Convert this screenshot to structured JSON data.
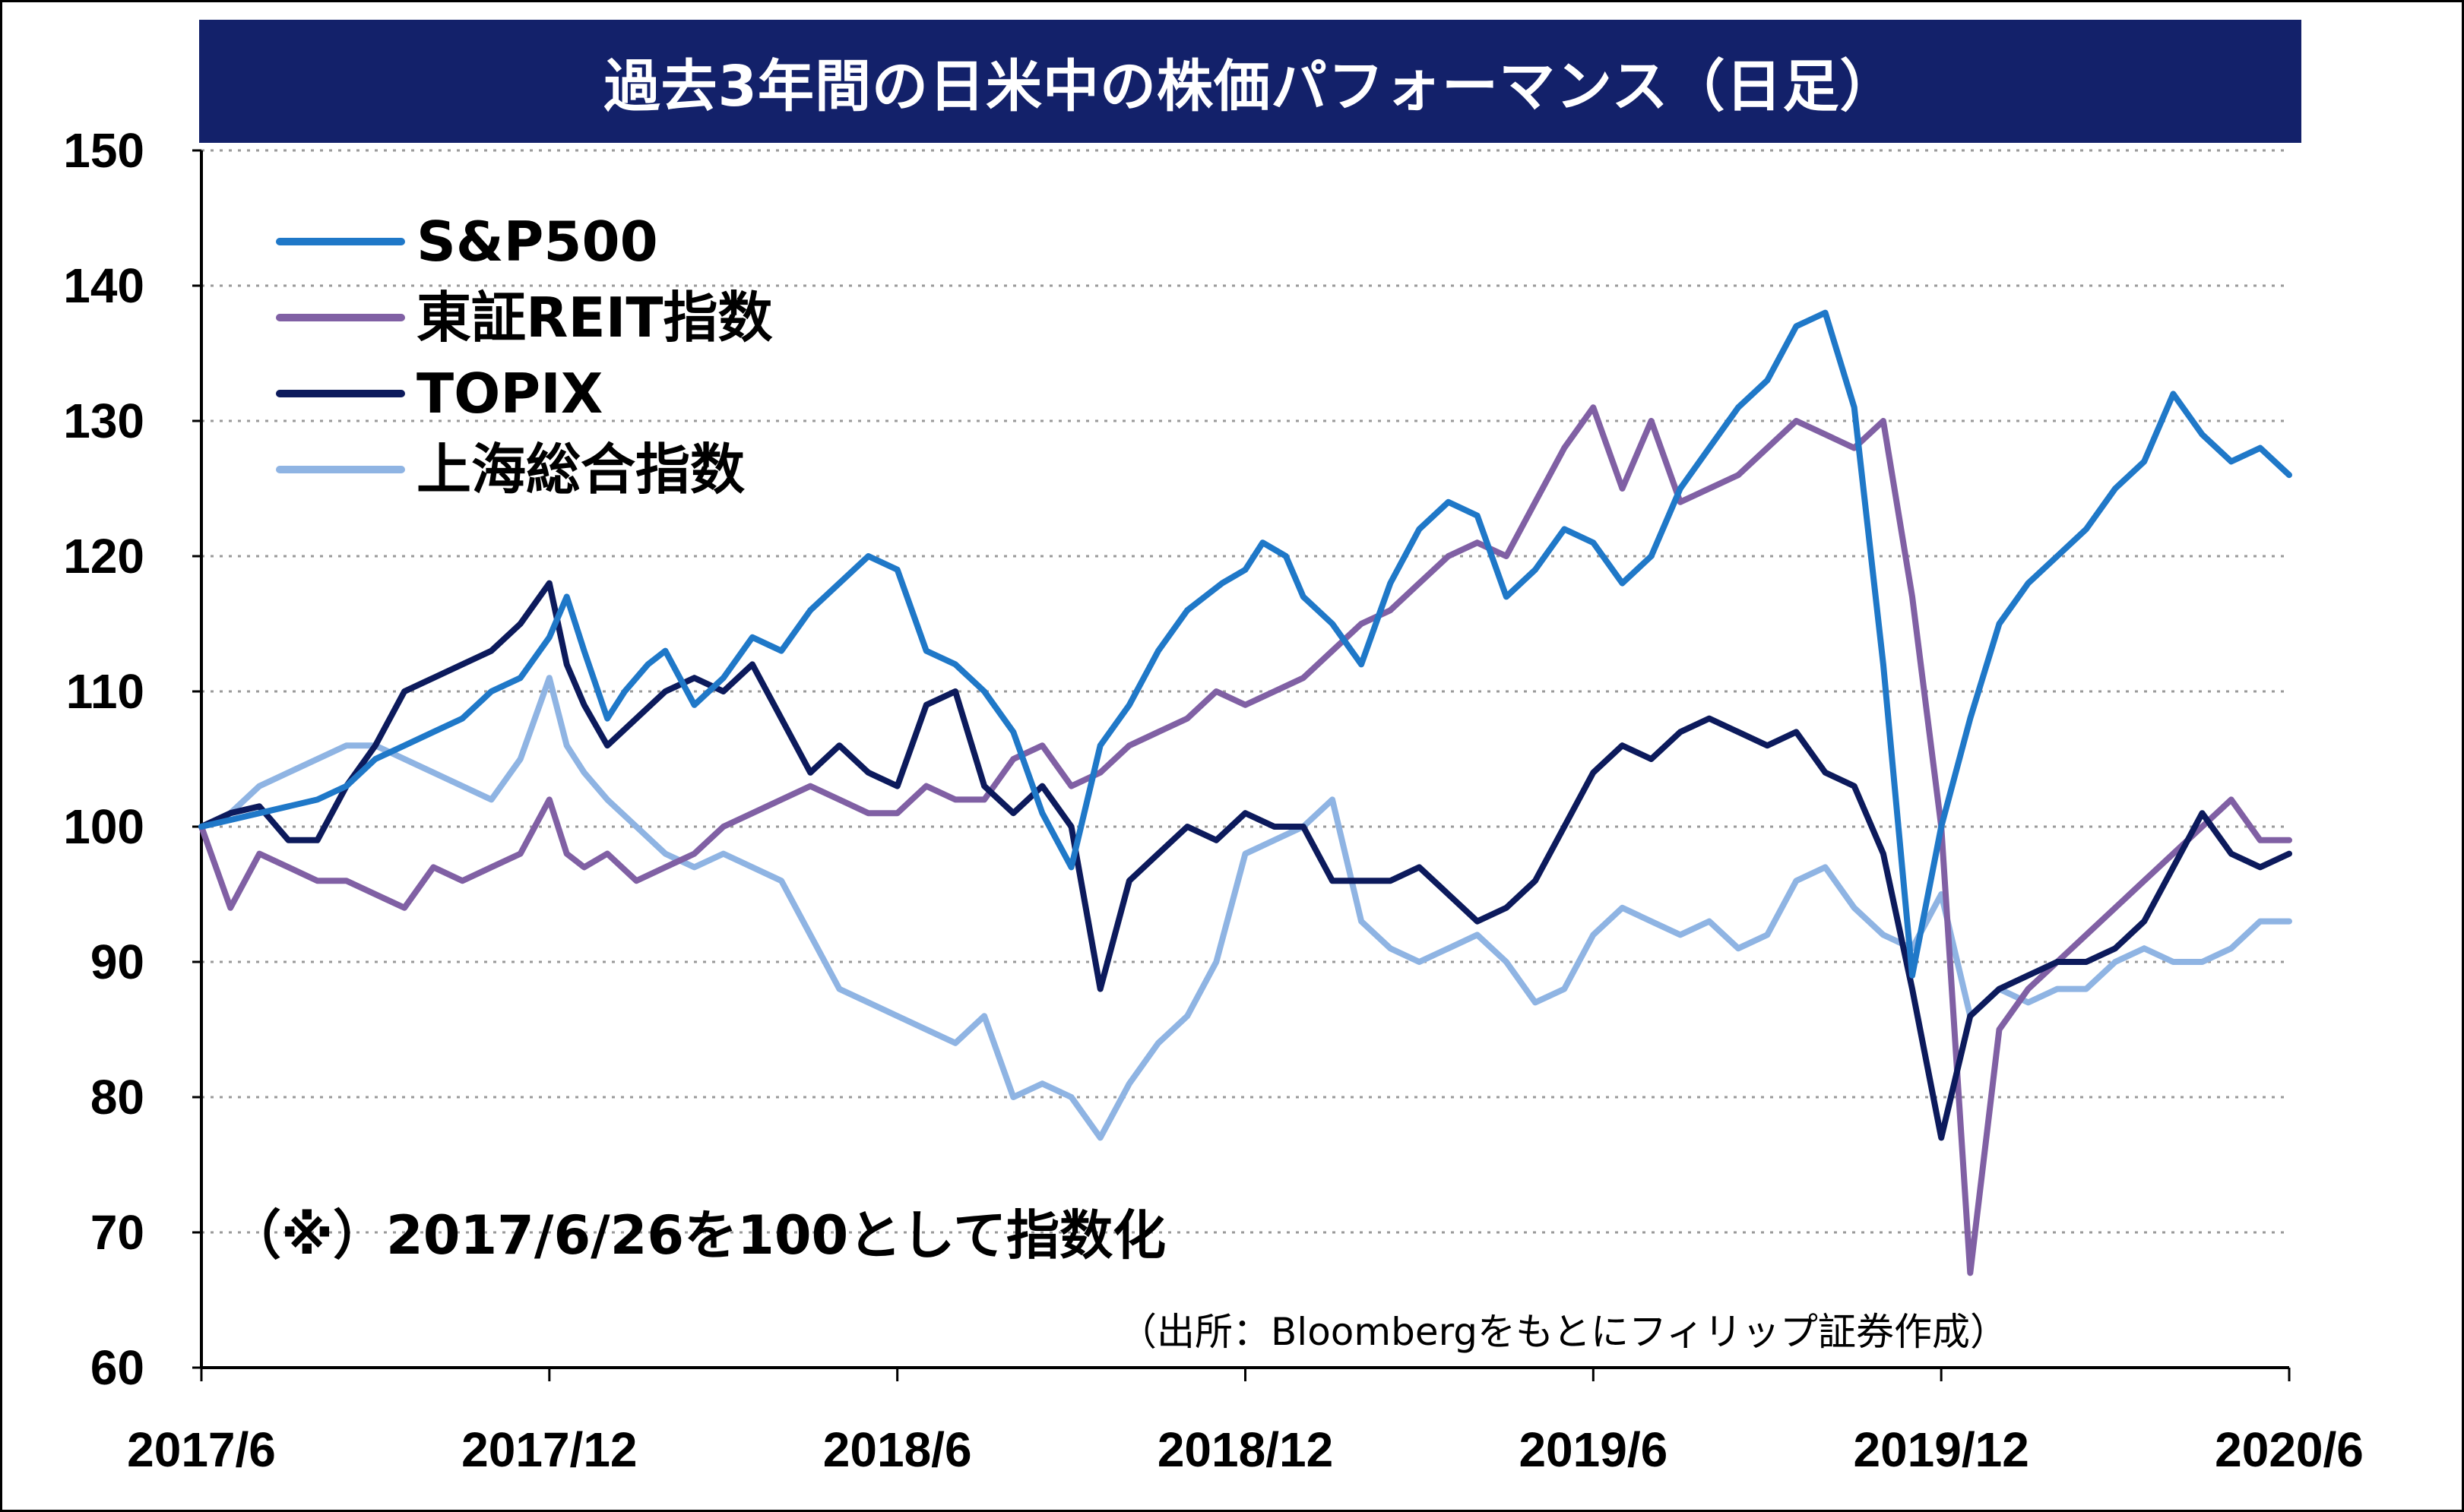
{
  "chart_data": {
    "type": "line",
    "title": "過去3年間の日米中の株価パフォーマンス（日足）",
    "xlabel": "",
    "ylabel": "",
    "ylim": [
      60,
      150
    ],
    "yticks": [
      60,
      70,
      80,
      90,
      100,
      110,
      120,
      130,
      140,
      150
    ],
    "xtick_labels": [
      "2017/6",
      "2017/12",
      "2018/6",
      "2018/12",
      "2019/6",
      "2019/12",
      "2020/6"
    ],
    "x_unit": "month",
    "grid": "horizontal dotted",
    "legend_placement": "top-left",
    "note": "（※）2017/6/26を100として指数化",
    "source": "（出所：Bloombergをもとにフィリップ証券作成）",
    "series": [
      {
        "name": "S&P500",
        "color": "#1f78c8",
        "x": [
          0,
          0.5,
          1,
          1.5,
          2,
          2.5,
          3,
          3.5,
          4,
          4.5,
          5,
          5.5,
          6,
          6.3,
          6.6,
          7,
          7.3,
          7.7,
          8,
          8.5,
          9,
          9.5,
          10,
          10.5,
          11,
          11.5,
          12,
          12.5,
          13,
          13.5,
          14,
          14.5,
          15,
          15.5,
          16,
          16.5,
          17,
          17.3,
          17.6,
          18,
          18.3,
          18.7,
          19,
          19.5,
          20,
          20.5,
          21,
          21.5,
          22,
          22.5,
          23,
          23.5,
          24,
          24.5,
          25,
          25.5,
          26,
          26.5,
          27,
          27.5,
          28,
          28.5,
          29,
          29.5,
          30,
          30.5,
          31,
          31.5,
          32,
          32.5,
          33,
          33.5,
          34,
          34.5,
          35,
          35.5,
          36
        ],
        "values": [
          100,
          100.5,
          101,
          101.5,
          102,
          103,
          105,
          106,
          107,
          108,
          110,
          111,
          114,
          117,
          113,
          108,
          110,
          112,
          113,
          109,
          111,
          114,
          113,
          116,
          118,
          120,
          119,
          113,
          112,
          110,
          107,
          101,
          97,
          106,
          109,
          113,
          116,
          117,
          118,
          119,
          121,
          120,
          117,
          115,
          112,
          118,
          122,
          124,
          123,
          117,
          119,
          122,
          121,
          118,
          120,
          125,
          128,
          131,
          133,
          137,
          138,
          131,
          112,
          89,
          100,
          108,
          115,
          118,
          120,
          122,
          125,
          127,
          132,
          129,
          127,
          128,
          126
        ]
      },
      {
        "name": "東証REIT指数",
        "color": "#8060a4",
        "x": [
          0,
          0.5,
          1,
          1.5,
          2,
          2.5,
          3,
          3.5,
          4,
          4.5,
          5,
          5.5,
          6,
          6.3,
          6.6,
          7,
          7.5,
          8,
          8.5,
          9,
          9.5,
          10,
          10.5,
          11,
          11.5,
          12,
          12.5,
          13,
          13.5,
          14,
          14.5,
          15,
          15.5,
          16,
          16.5,
          17,
          17.5,
          18,
          18.5,
          19,
          19.5,
          20,
          20.5,
          21,
          21.5,
          22,
          22.5,
          23,
          23.5,
          24,
          24.5,
          25,
          25.5,
          26,
          26.5,
          27,
          27.5,
          28,
          28.5,
          29,
          29.5,
          30,
          30.5,
          31,
          31.5,
          32,
          32.5,
          33,
          33.5,
          34,
          34.5,
          35,
          35.5,
          36
        ],
        "values": [
          100,
          94,
          98,
          97,
          96,
          96,
          95,
          94,
          97,
          96,
          97,
          98,
          102,
          98,
          97,
          98,
          96,
          97,
          98,
          100,
          101,
          102,
          103,
          102,
          101,
          101,
          103,
          102,
          102,
          105,
          106,
          103,
          104,
          106,
          107,
          108,
          110,
          109,
          110,
          111,
          113,
          115,
          116,
          118,
          120,
          121,
          120,
          124,
          128,
          131,
          125,
          130,
          124,
          125,
          126,
          128,
          130,
          129,
          128,
          130,
          117,
          100,
          67,
          85,
          88,
          90,
          92,
          94,
          96,
          98,
          100,
          102,
          99,
          99
        ]
      },
      {
        "name": "TOPIX",
        "color": "#0c1a5c",
        "x": [
          0,
          0.5,
          1,
          1.5,
          2,
          2.5,
          3,
          3.5,
          4,
          4.5,
          5,
          5.5,
          6,
          6.3,
          6.6,
          7,
          7.5,
          8,
          8.5,
          9,
          9.5,
          10,
          10.5,
          11,
          11.5,
          12,
          12.5,
          13,
          13.5,
          14,
          14.5,
          15,
          15.5,
          16,
          16.5,
          17,
          17.5,
          18,
          18.5,
          19,
          19.5,
          20,
          20.5,
          21,
          21.5,
          22,
          22.5,
          23,
          23.5,
          24,
          24.5,
          25,
          25.5,
          26,
          26.5,
          27,
          27.5,
          28,
          28.5,
          29,
          29.5,
          30,
          30.5,
          31,
          31.5,
          32,
          32.5,
          33,
          33.5,
          34,
          34.5,
          35,
          35.5,
          36
        ],
        "values": [
          100,
          101,
          101.5,
          99,
          99,
          103,
          106,
          110,
          111,
          112,
          113,
          115,
          118,
          112,
          109,
          106,
          108,
          110,
          111,
          110,
          112,
          108,
          104,
          106,
          104,
          103,
          109,
          110,
          103,
          101,
          103,
          100,
          88,
          96,
          98,
          100,
          99,
          101,
          100,
          100,
          96,
          96,
          96,
          97,
          95,
          93,
          94,
          96,
          100,
          104,
          106,
          105,
          107,
          108,
          107,
          106,
          107,
          104,
          103,
          98,
          88,
          77,
          86,
          88,
          89,
          90,
          90,
          91,
          93,
          97,
          101,
          98,
          97,
          98
        ]
      },
      {
        "name": "上海総合指数",
        "color": "#8fb4e3",
        "x": [
          0,
          0.5,
          1,
          1.5,
          2,
          2.5,
          3,
          3.5,
          4,
          4.5,
          5,
          5.5,
          6,
          6.3,
          6.6,
          7,
          7.5,
          8,
          8.5,
          9,
          9.5,
          10,
          10.5,
          11,
          11.5,
          12,
          12.5,
          13,
          13.5,
          14,
          14.5,
          15,
          15.5,
          16,
          16.5,
          17,
          17.5,
          18,
          18.5,
          19,
          19.5,
          20,
          20.5,
          21,
          21.5,
          22,
          22.5,
          23,
          23.5,
          24,
          24.5,
          25,
          25.5,
          26,
          26.5,
          27,
          27.5,
          28,
          28.5,
          29,
          29.5,
          30,
          30.5,
          31,
          31.5,
          32,
          32.5,
          33,
          33.5,
          34,
          34.5,
          35,
          35.5,
          36
        ],
        "values": [
          100,
          101,
          103,
          104,
          105,
          106,
          106,
          105,
          104,
          103,
          102,
          105,
          111,
          106,
          104,
          102,
          100,
          98,
          97,
          98,
          97,
          96,
          92,
          88,
          87,
          86,
          85,
          84,
          86,
          80,
          81,
          80,
          77,
          81,
          84,
          86,
          90,
          98,
          99,
          100,
          102,
          93,
          91,
          90,
          91,
          92,
          90,
          87,
          88,
          92,
          94,
          93,
          92,
          93,
          91,
          92,
          96,
          97,
          94,
          92,
          91,
          95,
          86,
          88,
          87,
          88,
          88,
          90,
          91,
          90,
          90,
          91,
          93,
          93
        ]
      }
    ]
  },
  "annotations": {
    "note": "（※）2017/6/26を100として指数化",
    "source": "（出所：Bloombergをもとにフィリップ証券作成）"
  },
  "legend": [
    "S&P500",
    "東証REIT指数",
    "TOPIX",
    "上海総合指数"
  ]
}
